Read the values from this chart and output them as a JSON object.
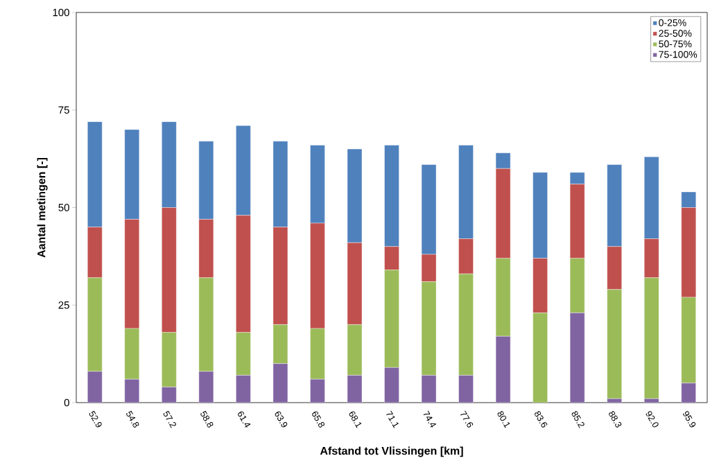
{
  "chart_data": {
    "type": "bar",
    "stacked": true,
    "xlabel": "Afstand tot Vlissingen [km]",
    "ylabel": "Aantal metingen [-]",
    "categories": [
      "52.9",
      "54.8",
      "57.2",
      "58.8",
      "61.4",
      "63.9",
      "65.8",
      "68.1",
      "71.1",
      "74.4",
      "77.6",
      "80.1",
      "83.6",
      "85.2",
      "88.3",
      "92.0",
      "95.9"
    ],
    "series": [
      {
        "name": "75-100%",
        "color": "#8064a2",
        "values": [
          8,
          6,
          4,
          8,
          7,
          10,
          6,
          7,
          9,
          7,
          7,
          17,
          0,
          23,
          1,
          1,
          5
        ]
      },
      {
        "name": "50-75%",
        "color": "#9bbb59",
        "values": [
          24,
          13,
          14,
          24,
          11,
          10,
          13,
          13,
          25,
          24,
          26,
          20,
          23,
          14,
          28,
          31,
          22
        ]
      },
      {
        "name": "25-50%",
        "color": "#c0504d",
        "values": [
          13,
          28,
          32,
          15,
          30,
          25,
          27,
          21,
          6,
          7,
          9,
          23,
          14,
          19,
          11,
          10,
          23
        ]
      },
      {
        "name": "0-25%",
        "color": "#4f81bd",
        "values": [
          27,
          23,
          22,
          20,
          23,
          22,
          20,
          24,
          26,
          23,
          24,
          4,
          22,
          3,
          21,
          21,
          4
        ]
      }
    ],
    "ylim": [
      0,
      100
    ],
    "yticks": [
      0,
      25,
      50,
      75,
      100
    ],
    "legend": "top right",
    "grid": false
  }
}
